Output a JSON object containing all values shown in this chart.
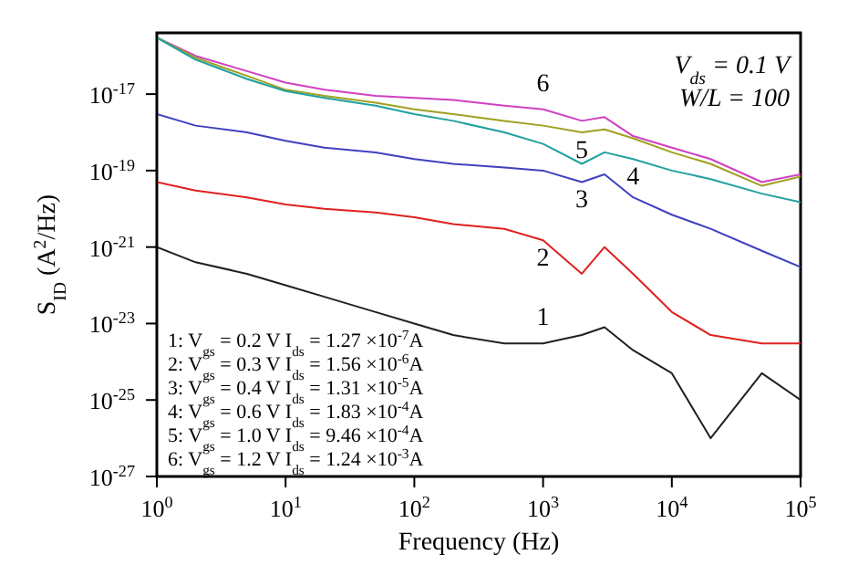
{
  "chart_data": {
    "type": "line",
    "xlabel": "Frequency (Hz)",
    "ylabel": "S$_{ID}$ (A$^{2}$/Hz)",
    "log": "xy",
    "grid": false,
    "legend": false,
    "marker": "none",
    "line_style": "solid",
    "x": [
      1,
      2,
      5,
      10,
      20,
      50,
      100,
      200,
      500,
      1000,
      2000,
      3000,
      5000,
      10000,
      20000,
      50000,
      100000
    ],
    "xlim": [
      1,
      100000
    ],
    "xticks": [
      {
        "value": 1,
        "label": "10$^{0}$"
      },
      {
        "value": 10,
        "label": "10$^{1}$"
      },
      {
        "value": 100,
        "label": "10$^{2}$"
      },
      {
        "value": 1000,
        "label": "10$^{3}$"
      },
      {
        "value": 10000,
        "label": "10$^{4}$"
      },
      {
        "value": 100000,
        "label": "10$^{5}$"
      }
    ],
    "ylim": [
      1e-27,
      4e-16
    ],
    "yticks": [
      {
        "value": 1e-27,
        "label": "10$^{-27}$"
      },
      {
        "value": 1e-25,
        "label": "10$^{-25}$"
      },
      {
        "value": 1e-23,
        "label": "10$^{-23}$"
      },
      {
        "value": 1e-21,
        "label": "10$^{-21}$"
      },
      {
        "value": 1e-19,
        "label": "10$^{-19}$"
      },
      {
        "value": 1e-17,
        "label": "10$^{-17}$"
      }
    ],
    "series": [
      {
        "name": "6",
        "color": "#d040c0",
        "values": [
          3e-16,
          1e-16,
          4e-17,
          2e-17,
          1.3e-17,
          9e-18,
          8e-18,
          7e-18,
          5e-18,
          4e-18,
          2e-18,
          2.5e-18,
          8e-19,
          4e-19,
          2e-19,
          5e-20,
          8e-20
        ]
      },
      {
        "name": "5",
        "color": "#a0a020",
        "values": [
          3e-16,
          9e-17,
          3e-17,
          1.3e-17,
          9e-18,
          6e-18,
          4e-18,
          3e-18,
          2e-18,
          1.5e-18,
          1e-18,
          1.2e-18,
          7e-19,
          3e-19,
          1.5e-19,
          4e-20,
          7e-20
        ]
      },
      {
        "name": "4",
        "color": "#20a0a0",
        "values": [
          3e-16,
          8e-17,
          2.5e-17,
          1.2e-17,
          8e-18,
          5e-18,
          3e-18,
          2e-18,
          1e-18,
          5e-19,
          1.5e-19,
          3e-19,
          2e-19,
          1e-19,
          6e-20,
          2.5e-20,
          1.5e-20
        ]
      },
      {
        "name": "3",
        "color": "#4040c0",
        "values": [
          3e-18,
          1.5e-18,
          1e-18,
          6e-19,
          4e-19,
          3e-19,
          2e-19,
          1.5e-19,
          1.2e-19,
          1e-19,
          5e-20,
          8e-20,
          2e-20,
          7e-21,
          3e-21,
          8e-22,
          3e-22
        ]
      },
      {
        "name": "2",
        "color": "#e02020",
        "values": [
          5e-20,
          3e-20,
          2e-20,
          1.3e-20,
          1e-20,
          8e-21,
          6e-21,
          4e-21,
          3e-21,
          1.5e-21,
          2e-22,
          1e-21,
          2e-22,
          2e-23,
          5e-24,
          3e-24,
          3e-24
        ]
      },
      {
        "name": "1",
        "color": "#202020",
        "values": [
          1e-21,
          4e-22,
          2e-22,
          1e-22,
          5e-23,
          2e-23,
          1e-23,
          5e-24,
          3e-24,
          3e-24,
          5e-24,
          8e-24,
          2e-24,
          5e-25,
          1e-26,
          5e-25,
          1e-25
        ]
      }
    ],
    "annotations": [
      "V$_{ds}$ = 0.1 V",
      "W/L = 100",
      "1: V$_{gs}$ = 0.2 V  I$_{ds}$ = 1.27 ×10$^{-7}$A",
      "2: V$_{gs}$ = 0.3 V  I$_{ds}$ = 1.56 ×10$^{-6}$A",
      "3: V$_{gs}$ = 0.4 V  I$_{ds}$ = 1.31 ×10$^{-5}$A",
      "4: V$_{gs}$ = 0.6 V  I$_{ds}$ = 1.83 ×10$^{-4}$A",
      "5: V$_{gs}$ = 1.0 V  I$_{ds}$ = 9.46 ×10$^{-4}$A",
      "6: V$_{gs}$ = 1.2 V  I$_{ds}$ = 1.24 ×10$^{-3}$A"
    ]
  }
}
